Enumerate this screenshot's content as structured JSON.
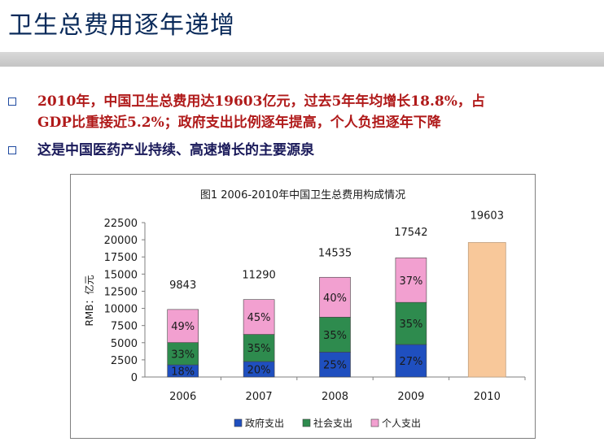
{
  "slide": {
    "title": "卫生总费用逐年递增",
    "bullets": [
      {
        "text_line1": "2010年，中国卫生总费用达19603亿元，过去5年年均增长18.8%，占",
        "text_line2": "GDP比重接近5.2%；政府支出比例逐年提高，个人负担逐年下降"
      },
      {
        "text_line1": "这是中国医药产业持续、高速增长的主要源泉"
      }
    ]
  },
  "colors": {
    "gov": "#1f4fbf",
    "social": "#2e8b4e",
    "personal": "#f2a0d0",
    "total2010": "#f8c89a"
  },
  "chart_data": {
    "type": "bar",
    "stacked": true,
    "title": "图1 2006-2010年中国卫生总费用构成情况",
    "ylabel": "RMB：亿元",
    "ylim": [
      0,
      22500
    ],
    "yticks": [
      0,
      2500,
      5000,
      7500,
      10000,
      12500,
      15000,
      17500,
      20000,
      22500
    ],
    "categories": [
      "2006",
      "2007",
      "2008",
      "2009",
      "2010"
    ],
    "totals": [
      9843,
      11290,
      14535,
      17542,
      19603
    ],
    "series": [
      {
        "name": "政府支出",
        "percent": [
          18,
          20,
          25,
          27,
          null
        ],
        "labels": [
          "18%",
          "20%",
          "25%",
          "27%",
          ""
        ]
      },
      {
        "name": "社会支出",
        "percent": [
          33,
          35,
          35,
          35,
          null
        ],
        "labels": [
          "33%",
          "35%",
          "35%",
          "35%",
          ""
        ]
      },
      {
        "name": "个人支出",
        "percent": [
          49,
          45,
          40,
          37,
          null
        ],
        "labels": [
          "49%",
          "45%",
          "40%",
          "37%",
          ""
        ]
      }
    ],
    "legend": [
      "政府支出",
      "社会支出",
      "个人支出"
    ],
    "legend_position": "bottom"
  }
}
